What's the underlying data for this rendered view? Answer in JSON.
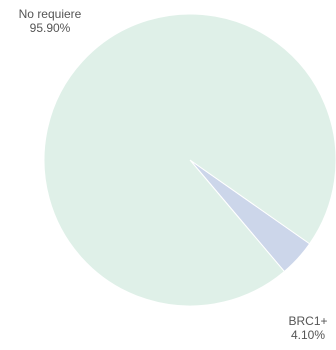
{
  "chart_data": {
    "type": "pie",
    "title": "",
    "categories": [
      "No requiere",
      "BRC1+"
    ],
    "values": [
      95.9,
      4.1
    ],
    "value_labels": [
      "95.90%",
      "4.10%"
    ],
    "colors": [
      "#dff0e8",
      "#ccd6ea"
    ],
    "legend": "none"
  }
}
